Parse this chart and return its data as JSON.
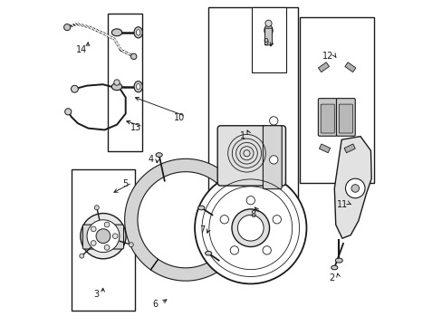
{
  "bg_color": "#ffffff",
  "line_color": "#1a1a1a",
  "fig_width": 4.89,
  "fig_height": 3.6,
  "dpi": 100,
  "label_positions": {
    "1": [
      0.565,
      0.415,
      0.575,
      0.39
    ],
    "2": [
      0.84,
      0.855,
      0.855,
      0.83
    ],
    "3": [
      0.115,
      0.905,
      0.135,
      0.875
    ],
    "4": [
      0.283,
      0.49,
      0.3,
      0.51
    ],
    "5": [
      0.205,
      0.565,
      0.16,
      0.595
    ],
    "6": [
      0.295,
      0.935,
      0.34,
      0.915
    ],
    "7": [
      0.442,
      0.705,
      0.452,
      0.725
    ],
    "8": [
      0.598,
      0.66,
      0.597,
      0.628
    ],
    "9": [
      0.636,
      0.13,
      0.648,
      0.15
    ],
    "10": [
      0.37,
      0.36,
      0.225,
      0.295
    ],
    "11": [
      0.872,
      0.628,
      0.9,
      0.628
    ],
    "12": [
      0.828,
      0.172,
      0.858,
      0.182
    ],
    "13": [
      0.238,
      0.392,
      0.198,
      0.368
    ],
    "14": [
      0.068,
      0.152,
      0.09,
      0.118
    ]
  }
}
